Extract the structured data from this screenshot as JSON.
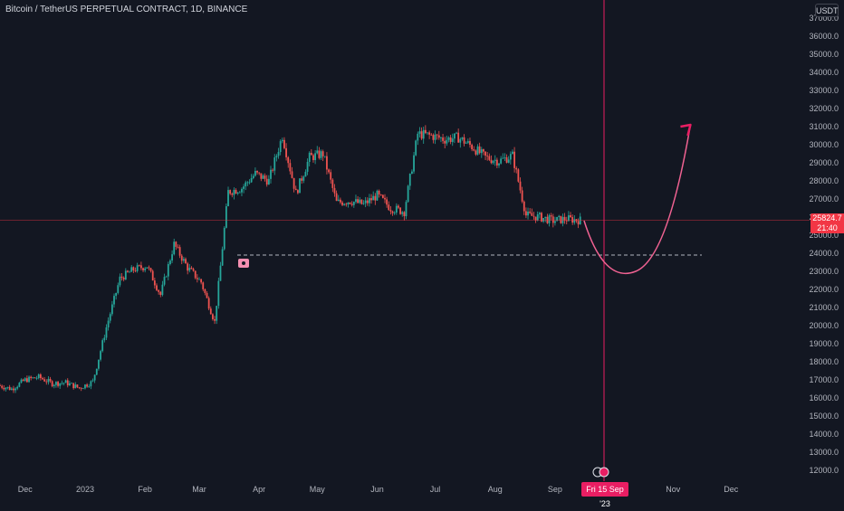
{
  "header": {
    "title": "Bitcoin / TetherUS PERPETUAL CONTRACT, 1D, BINANCE",
    "currency": "USDT"
  },
  "last_price": {
    "value": "25824.7",
    "countdown": "21:40"
  },
  "crosshair": {
    "date_label": "Fri 15 Sep '23"
  },
  "colors": {
    "background": "#131722",
    "up": "#26a69a",
    "down": "#ef5350",
    "projection": "#f06292",
    "crosshair": "#e91e63",
    "price_line": "#f23645"
  },
  "chart_data": {
    "type": "candlestick",
    "ylim": [
      11800,
      37200
    ],
    "y_ticks": [
      "12000.0",
      "13000.0",
      "14000.0",
      "15000.0",
      "16000.0",
      "17000.0",
      "18000.0",
      "19000.0",
      "20000.0",
      "21000.0",
      "22000.0",
      "23000.0",
      "24000.0",
      "25000.0",
      "26000.0",
      "27000.0",
      "28000.0",
      "29000.0",
      "30000.0",
      "31000.0",
      "32000.0",
      "33000.0",
      "34000.0",
      "35000.0",
      "36000.0",
      "37000.0"
    ],
    "x_ticks": [
      "Dec",
      "2023",
      "Feb",
      "Mar",
      "Apr",
      "May",
      "Jun",
      "Jul",
      "Aug",
      "Sep",
      "Oct",
      "Nov",
      "Dec"
    ],
    "x_range": [
      "2022-11-18",
      "2023-12-21"
    ],
    "closes": [
      {
        "date": "2022-11-18",
        "close": 16700
      },
      {
        "date": "2022-11-25",
        "close": 16500
      },
      {
        "date": "2022-12-02",
        "close": 17000
      },
      {
        "date": "2022-12-09",
        "close": 17150
      },
      {
        "date": "2022-12-16",
        "close": 16800
      },
      {
        "date": "2022-12-23",
        "close": 16850
      },
      {
        "date": "2022-12-30",
        "close": 16550
      },
      {
        "date": "2023-01-06",
        "close": 16900
      },
      {
        "date": "2023-01-13",
        "close": 19900
      },
      {
        "date": "2023-01-20",
        "close": 22600
      },
      {
        "date": "2023-01-27",
        "close": 23100
      },
      {
        "date": "2023-02-03",
        "close": 23300
      },
      {
        "date": "2023-02-10",
        "close": 21700
      },
      {
        "date": "2023-02-17",
        "close": 24500
      },
      {
        "date": "2023-02-24",
        "close": 23200
      },
      {
        "date": "2023-03-03",
        "close": 22400
      },
      {
        "date": "2023-03-10",
        "close": 20200
      },
      {
        "date": "2023-03-17",
        "close": 27400
      },
      {
        "date": "2023-03-24",
        "close": 27600
      },
      {
        "date": "2023-03-31",
        "close": 28400
      },
      {
        "date": "2023-04-07",
        "close": 28000
      },
      {
        "date": "2023-04-14",
        "close": 30500
      },
      {
        "date": "2023-04-21",
        "close": 27300
      },
      {
        "date": "2023-04-28",
        "close": 29300
      },
      {
        "date": "2023-05-05",
        "close": 29500
      },
      {
        "date": "2023-05-12",
        "close": 26800
      },
      {
        "date": "2023-05-19",
        "close": 26900
      },
      {
        "date": "2023-05-26",
        "close": 26700
      },
      {
        "date": "2023-06-02",
        "close": 27200
      },
      {
        "date": "2023-06-09",
        "close": 26500
      },
      {
        "date": "2023-06-16",
        "close": 26300
      },
      {
        "date": "2023-06-23",
        "close": 30600
      },
      {
        "date": "2023-06-30",
        "close": 30500
      },
      {
        "date": "2023-07-07",
        "close": 30300
      },
      {
        "date": "2023-07-14",
        "close": 30400
      },
      {
        "date": "2023-07-21",
        "close": 29900
      },
      {
        "date": "2023-07-28",
        "close": 29300
      },
      {
        "date": "2023-08-04",
        "close": 29100
      },
      {
        "date": "2023-08-11",
        "close": 29400
      },
      {
        "date": "2023-08-18",
        "close": 26100
      },
      {
        "date": "2023-08-25",
        "close": 26000
      },
      {
        "date": "2023-09-01",
        "close": 25800
      },
      {
        "date": "2023-09-08",
        "close": 25900
      },
      {
        "date": "2023-09-15",
        "close": 25824.7
      }
    ],
    "levels": [
      {
        "value": 23900
      }
    ],
    "projection": [
      {
        "date": "2023-09-16",
        "price": 25800
      },
      {
        "date": "2023-10-01",
        "price": 23000
      },
      {
        "date": "2023-10-15",
        "price": 24400
      },
      {
        "date": "2023-11-10",
        "price": 31100
      }
    ],
    "xlabel": "",
    "ylabel": "",
    "grid": false
  }
}
